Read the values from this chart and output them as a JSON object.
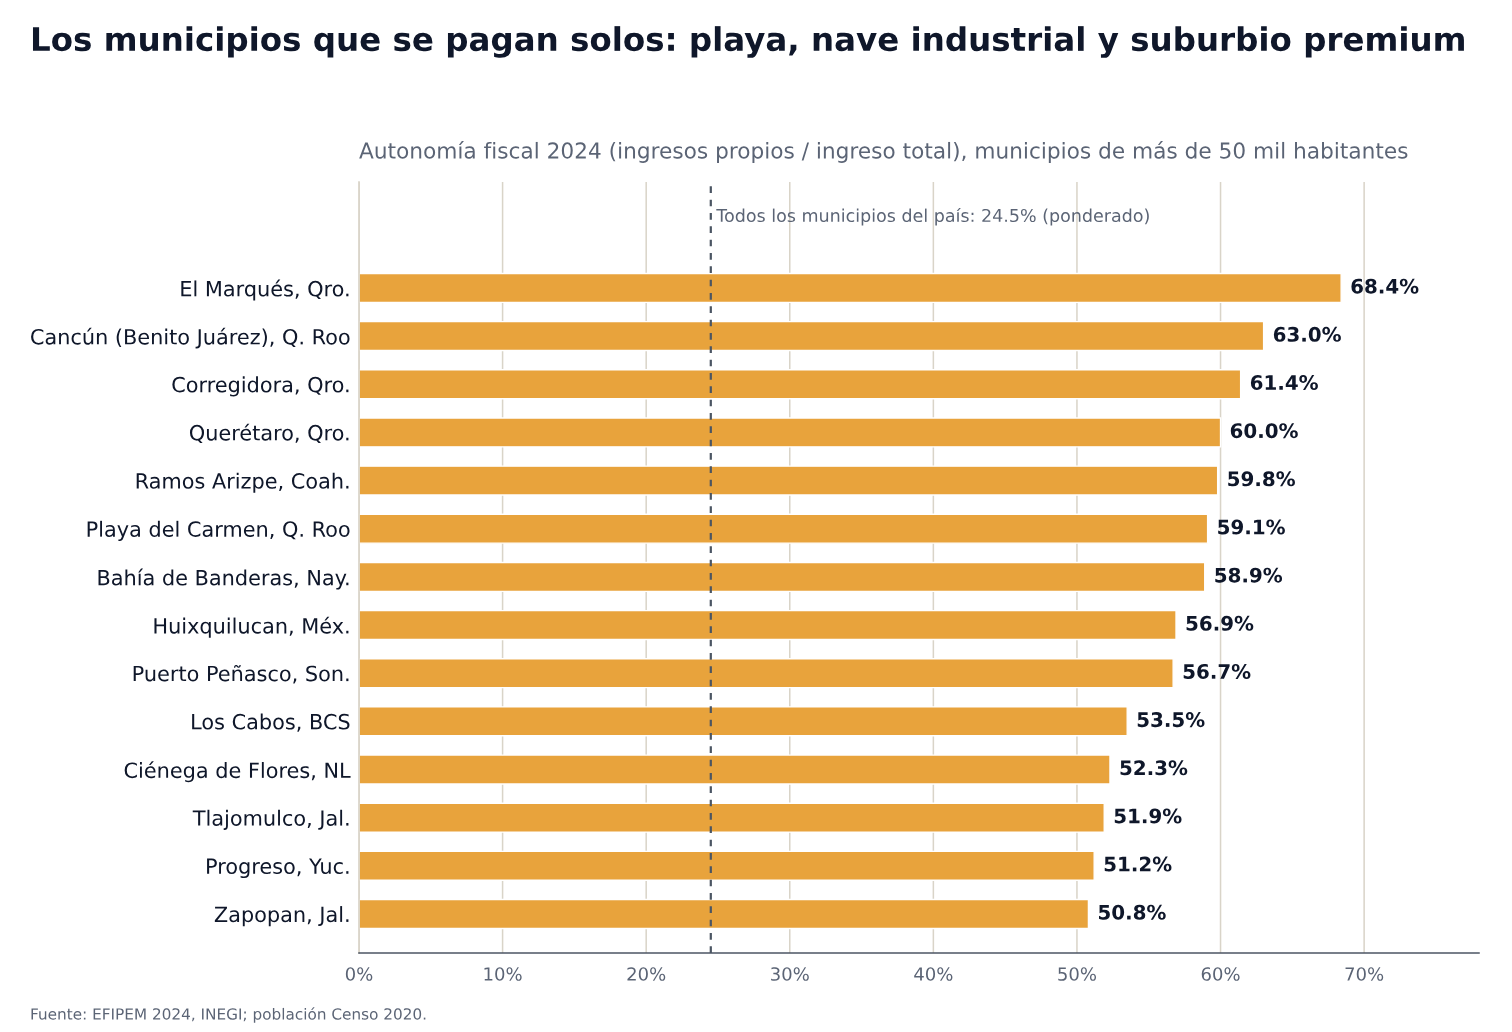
{
  "chart_data": {
    "type": "bar",
    "orientation": "horizontal",
    "title": "Los municipios que se pagan solos: playa, nave industrial y suburbio premium",
    "subtitle": "Autonomía fiscal 2024 (ingresos propios / ingreso total), municipios de más de 50 mil habitantes",
    "categories": [
      "El Marqués, Qro.",
      "Cancún (Benito Juárez), Q. Roo",
      "Corregidora, Qro.",
      "Querétaro, Qro.",
      "Ramos Arizpe, Coah.",
      "Playa del Carmen, Q. Roo",
      "Bahía de Banderas, Nay.",
      "Huixquilucan, Méx.",
      "Puerto Peñasco, Son.",
      "Los Cabos, BCS",
      "Ciénega de Flores, NL",
      "Tlajomulco, Jal.",
      "Progreso, Yuc.",
      "Zapopan, Jal."
    ],
    "values": [
      68.4,
      63.0,
      61.4,
      60.0,
      59.8,
      59.1,
      58.9,
      56.9,
      56.7,
      53.5,
      52.3,
      51.9,
      51.2,
      50.8
    ],
    "value_labels": [
      "68.4%",
      "63.0%",
      "61.4%",
      "60.0%",
      "59.8%",
      "59.1%",
      "58.9%",
      "56.9%",
      "56.7%",
      "53.5%",
      "52.3%",
      "51.9%",
      "51.2%",
      "50.8%"
    ],
    "color": "#e8a33c",
    "xlim": [
      0,
      78
    ],
    "xticks": [
      {
        "value": 0,
        "label": "0%"
      },
      {
        "value": 10,
        "label": "10%"
      },
      {
        "value": 20,
        "label": "20%"
      },
      {
        "value": 30,
        "label": "30%"
      },
      {
        "value": 40,
        "label": "40%"
      },
      {
        "value": 50,
        "label": "50%"
      },
      {
        "value": 60,
        "label": "60%"
      },
      {
        "value": 70,
        "label": "70%"
      }
    ],
    "grid": "x",
    "ref_lines": [
      {
        "axis": "x",
        "value": 24.5,
        "label": "Todos los municipios del país: 24.5% (ponderado)",
        "color": "#4b5563",
        "line_style": "dashed"
      }
    ],
    "annotations": [
      "Fuente: EFIPEM 2024, INEGI; población Censo 2020."
    ]
  }
}
